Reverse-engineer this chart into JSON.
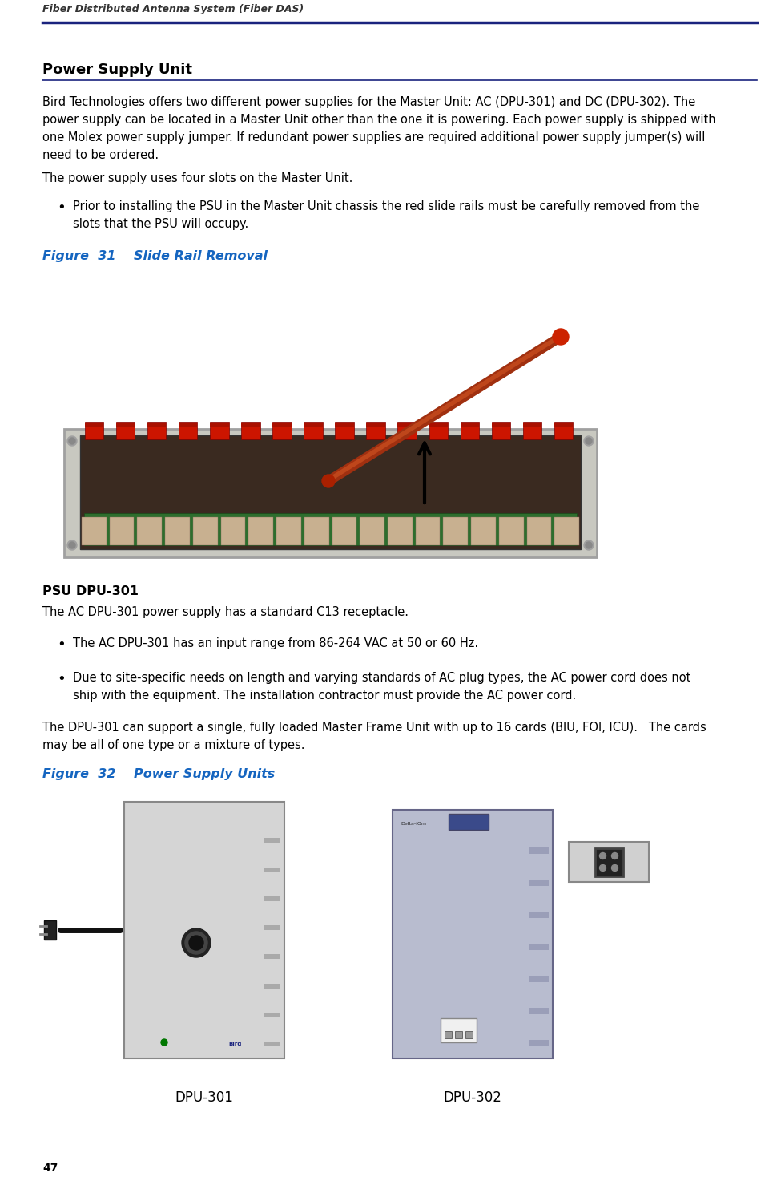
{
  "header_text": "Fiber Distributed Antenna System (Fiber DAS)",
  "header_line_color": "#1a237e",
  "page_number": "47",
  "section_title": "Power Supply Unit",
  "section_title_underline_color": "#1a237e",
  "body_text_1": "Bird Technologies offers two different power supplies for the Master Unit: AC (DPU-301) and DC (DPU-302). The\npower supply can be located in a Master Unit other than the one it is powering. Each power supply is shipped with\none Molex power supply jumper. If redundant power supplies are required additional power supply jumper(s) will\nneed to be ordered.",
  "body_text_2": "The power supply uses four slots on the Master Unit.",
  "bullet_text_1a": "Prior to installing the PSU in the Master Unit chassis the red slide rails must be carefully removed from the",
  "bullet_text_1b": "slots that the PSU will occupy.",
  "figure31_label": "Figure  31    Slide Rail Removal",
  "figure31_label_color": "#1565C0",
  "psu_section_title": "PSU DPU-301",
  "psu_body_1": "The AC DPU-301 power supply has a standard C13 receptacle.",
  "psu_bullet_1": "The AC DPU-301 has an input range from 86-264 VAC at 50 or 60 Hz.",
  "psu_bullet_2a": "Due to site-specific needs on length and varying standards of AC plug types, the AC power cord does not",
  "psu_bullet_2b": "ship with the equipment. The installation contractor must provide the AC power cord.",
  "psu_body_2": "The DPU-301 can support a single, fully loaded Master Frame Unit with up to 16 cards (BIU, FOI, ICU).   The cards\nmay be all of one type or a mixture of types.",
  "figure32_label": "Figure  32    Power Supply Units",
  "figure32_label_color": "#1565C0",
  "dpu301_label": "DPU-301",
  "dpu302_label": "DPU-302",
  "bg_color": "#ffffff",
  "text_color": "#000000"
}
